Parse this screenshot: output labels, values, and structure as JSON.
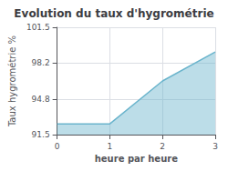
{
  "chart_data": {
    "type": "area",
    "title": "Evolution du taux d'hygrométrie",
    "xlabel": "heure par heure",
    "ylabel": "Taux hygrométrie %",
    "x": [
      0,
      1,
      2,
      3
    ],
    "values": [
      92.5,
      92.5,
      96.5,
      99.2
    ],
    "xlim": [
      0,
      3
    ],
    "ylim": [
      91.5,
      101.5
    ],
    "xticks": [
      0,
      1,
      2,
      3
    ],
    "yticks": [
      91.5,
      94.8,
      98.2,
      101.5
    ],
    "color": "#6ab4cc",
    "grid": true
  }
}
